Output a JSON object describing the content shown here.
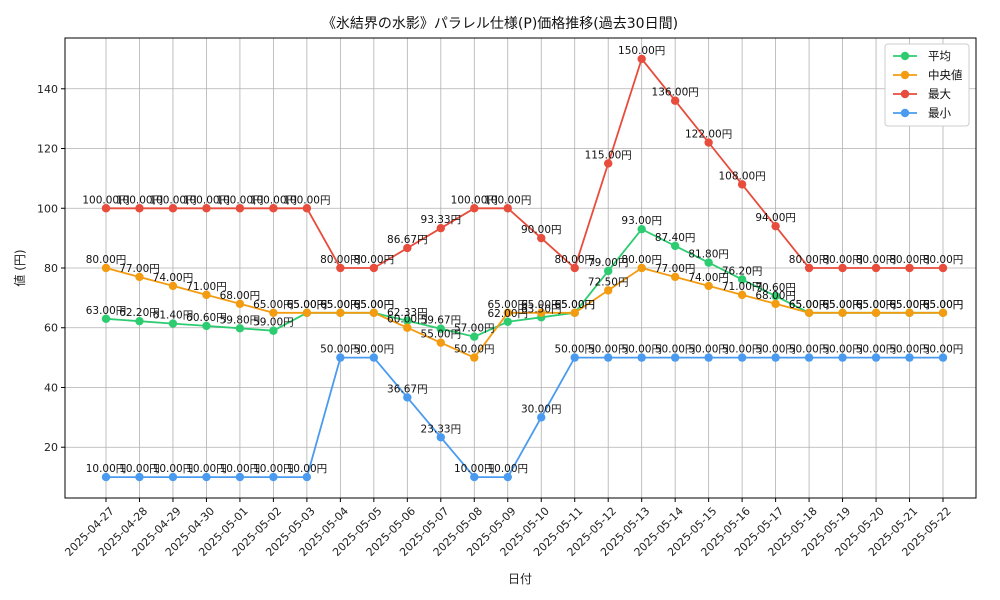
{
  "chart_data": {
    "type": "line",
    "title": "《氷結界の水影》パラレル仕様(P)価格推移(過去30日間)",
    "xlabel": "日付",
    "ylabel": "値 (円)",
    "unit_suffix": "円",
    "ylim": [
      3,
      157
    ],
    "yticks": [
      20,
      40,
      60,
      80,
      100,
      120,
      140
    ],
    "grid": true,
    "legend_position": "top-right",
    "x": [
      "2025-04-27",
      "2025-04-28",
      "2025-04-29",
      "2025-04-30",
      "2025-05-01",
      "2025-05-02",
      "2025-05-03",
      "2025-05-04",
      "2025-05-05",
      "2025-05-06",
      "2025-05-07",
      "2025-05-08",
      "2025-05-09",
      "2025-05-10",
      "2025-05-11",
      "2025-05-12",
      "2025-05-13",
      "2025-05-14",
      "2025-05-15",
      "2025-05-16",
      "2025-05-17",
      "2025-05-18",
      "2025-05-19",
      "2025-05-20",
      "2025-05-21",
      "2025-05-22"
    ],
    "series": [
      {
        "name": "平均",
        "color": "#2ecc71",
        "values": [
          63.0,
          62.2,
          61.4,
          60.6,
          59.8,
          59.0,
          65.0,
          65.0,
          65.0,
          62.33,
          59.67,
          57.0,
          62.0,
          63.5,
          65.0,
          79.0,
          93.0,
          87.4,
          81.8,
          76.2,
          70.6,
          65.0,
          65.0,
          65.0,
          65.0,
          65.0
        ]
      },
      {
        "name": "中央値",
        "color": "#f39c12",
        "values": [
          80.0,
          77.0,
          74.0,
          71.0,
          68.0,
          65.0,
          65.0,
          65.0,
          65.0,
          60.0,
          55.0,
          50.0,
          65.0,
          65.0,
          65.0,
          72.5,
          80.0,
          77.0,
          74.0,
          71.0,
          68.0,
          65.0,
          65.0,
          65.0,
          65.0,
          65.0
        ]
      },
      {
        "name": "最大",
        "color": "#e74c3c",
        "values": [
          100.0,
          100.0,
          100.0,
          100.0,
          100.0,
          100.0,
          100.0,
          80.0,
          80.0,
          86.67,
          93.33,
          100.0,
          100.0,
          90.0,
          80.0,
          115.0,
          150.0,
          136.0,
          122.0,
          108.0,
          94.0,
          80.0,
          80.0,
          80.0,
          80.0,
          80.0
        ]
      },
      {
        "name": "最小",
        "color": "#4a9bef",
        "values": [
          10.0,
          10.0,
          10.0,
          10.0,
          10.0,
          10.0,
          10.0,
          50.0,
          50.0,
          36.67,
          23.33,
          10.0,
          10.0,
          30.0,
          50.0,
          50.0,
          50.0,
          50.0,
          50.0,
          50.0,
          50.0,
          50.0,
          50.0,
          50.0,
          50.0,
          50.0
        ]
      }
    ]
  }
}
